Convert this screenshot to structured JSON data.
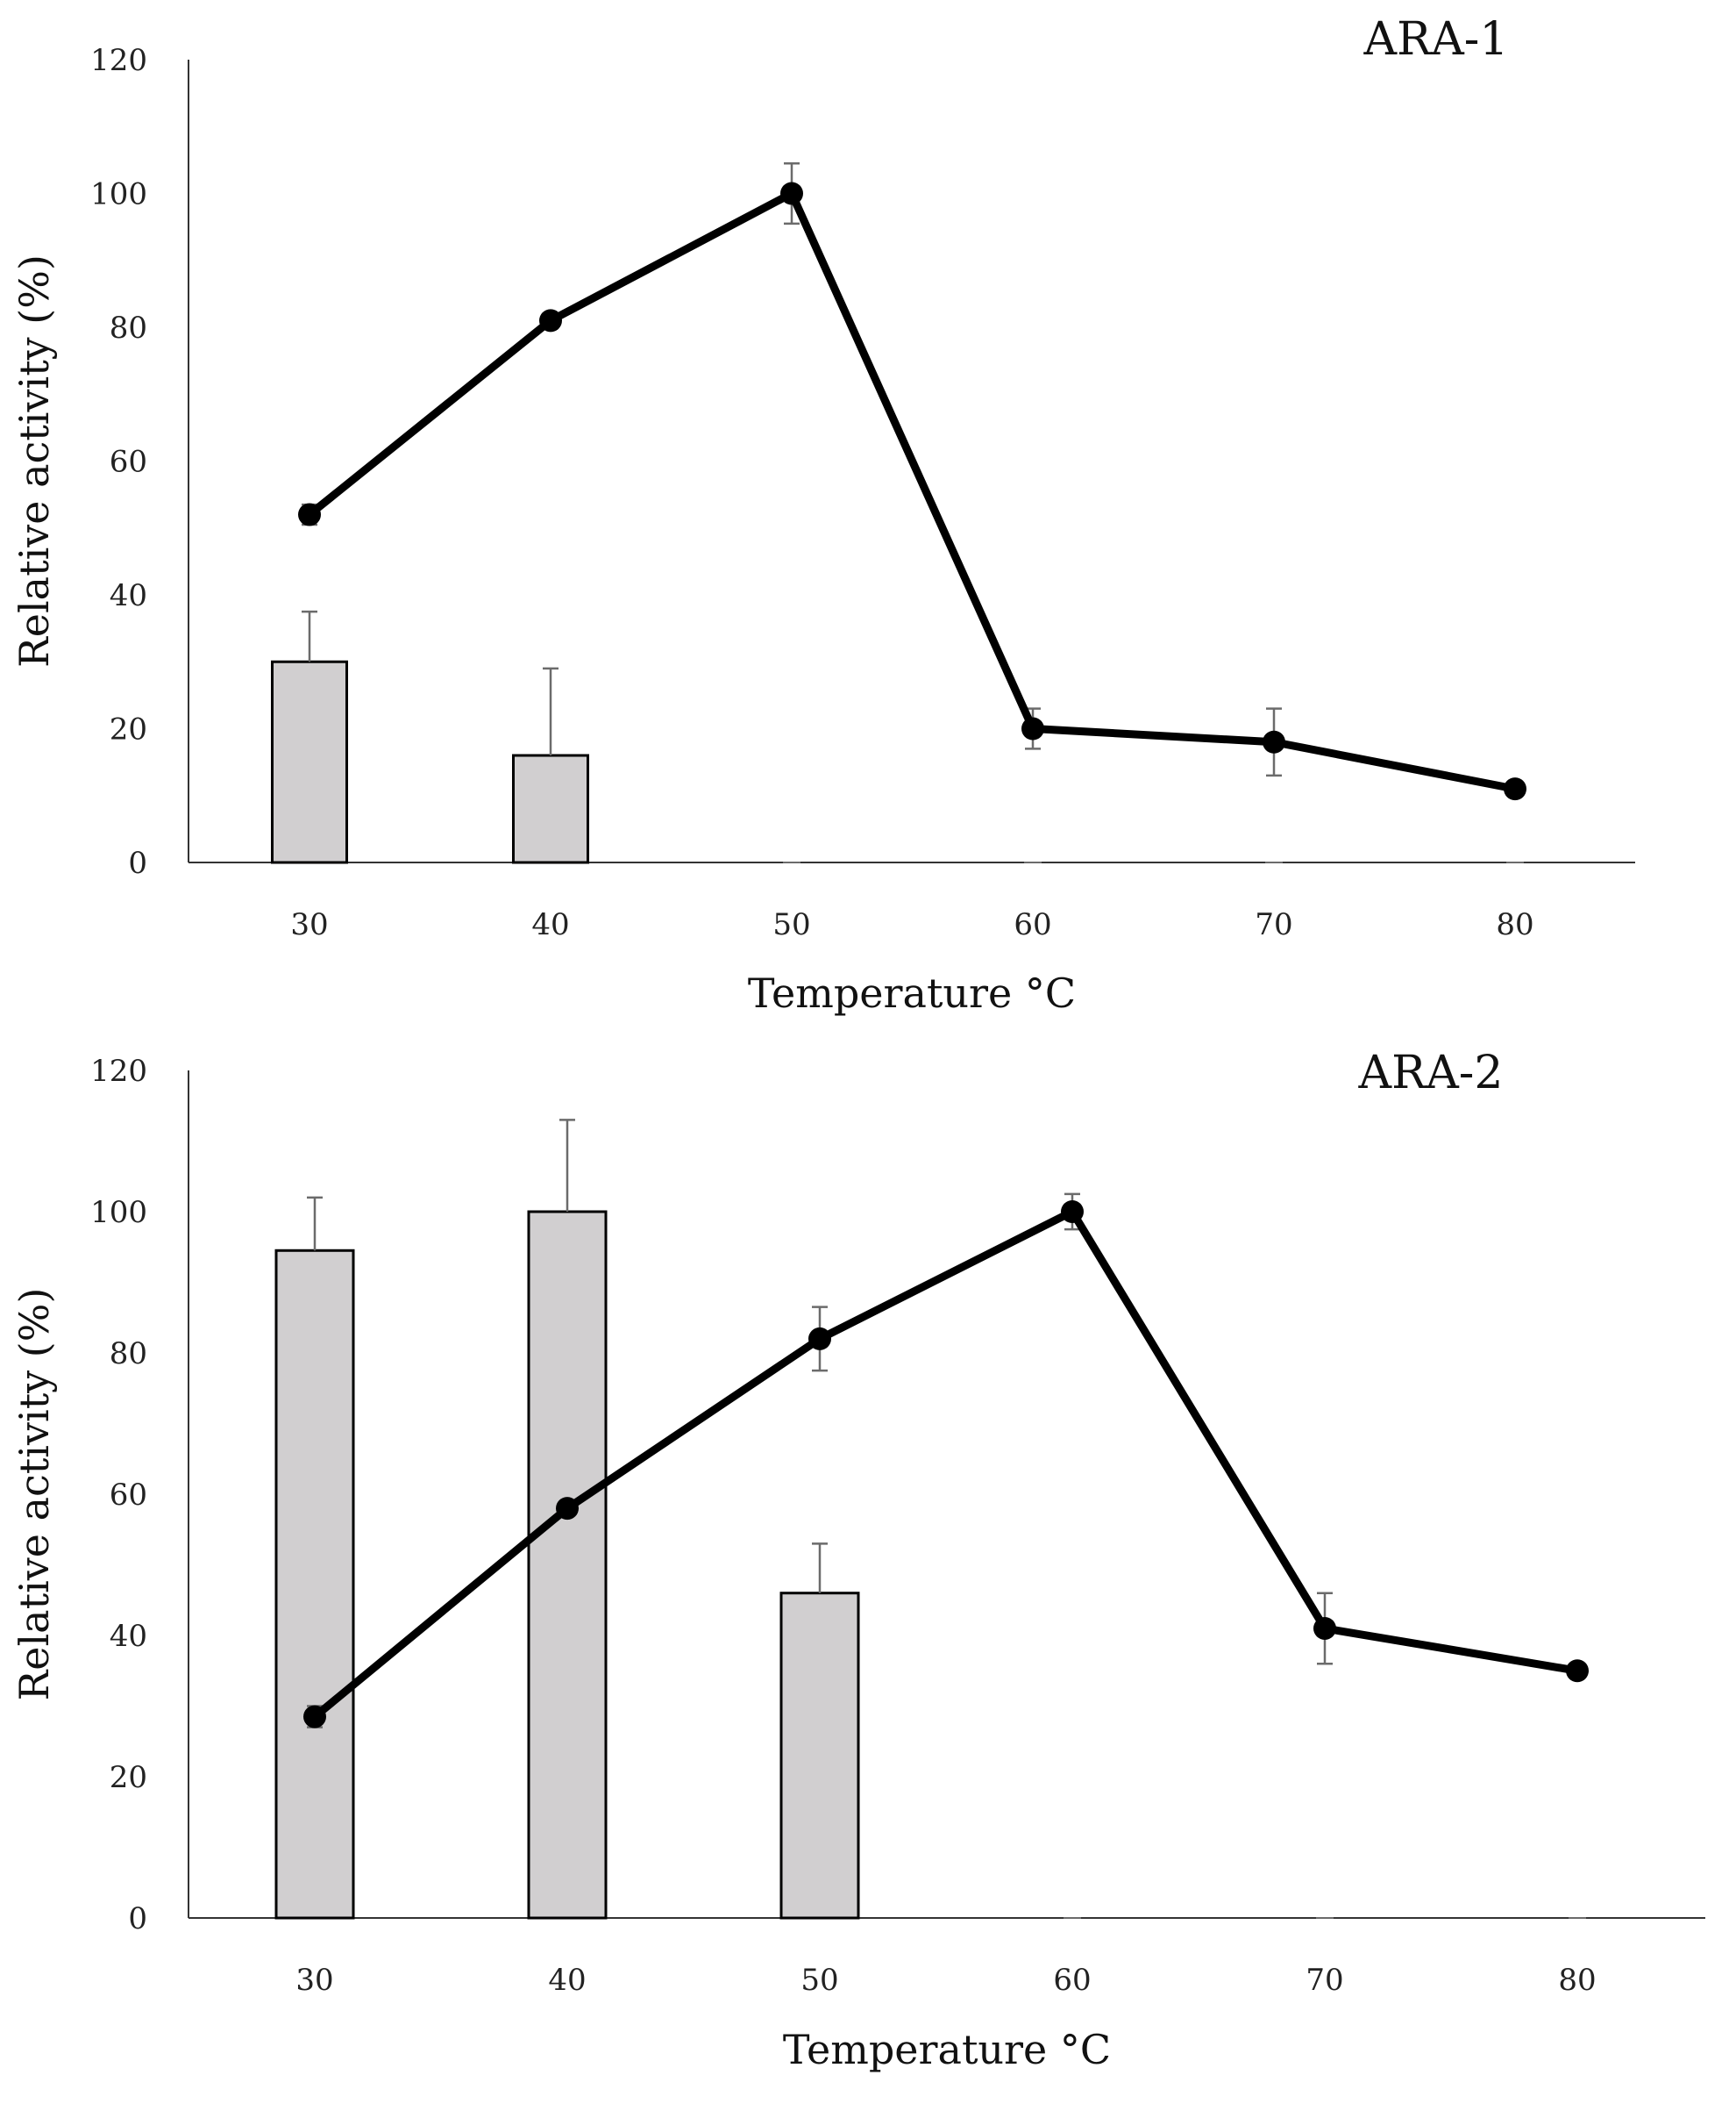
{
  "colors": {
    "bar_fill": "#d1cfd0",
    "bar_stroke": "#000000",
    "line": "#000000",
    "error_bar": "#6b6b6b",
    "axis": "#333333"
  },
  "chart_data": [
    {
      "type": "bar+line",
      "title": "ARA-1",
      "xlabel": "Temperature °C",
      "ylabel": "Relative activity (%)",
      "ylim": [
        0,
        120
      ],
      "yticks": [
        "0",
        "20",
        "40",
        "60",
        "80",
        "100",
        "120"
      ],
      "categories": [
        "30",
        "40",
        "50",
        "60",
        "70",
        "80"
      ],
      "series": [
        {
          "name": "bars",
          "type": "bar",
          "values": [
            30,
            16,
            0,
            0,
            0,
            0
          ],
          "errors": [
            7.5,
            13,
            0,
            0,
            0,
            0
          ]
        },
        {
          "name": "line",
          "type": "line",
          "values": [
            52,
            81,
            100,
            20,
            18,
            11
          ],
          "errors": [
            1.5,
            1,
            4.5,
            3,
            5,
            0
          ]
        }
      ]
    },
    {
      "type": "bar+line",
      "title": "ARA-2",
      "xlabel": "Temperature °C",
      "ylabel": "Relative activity (%)",
      "ylim": [
        0,
        120
      ],
      "yticks": [
        "0",
        "20",
        "40",
        "60",
        "80",
        "100",
        "120"
      ],
      "categories": [
        "30",
        "40",
        "50",
        "60",
        "70",
        "80"
      ],
      "series": [
        {
          "name": "bars",
          "type": "bar",
          "values": [
            94.5,
            100,
            46,
            0,
            0,
            0
          ],
          "errors": [
            7.5,
            13,
            7,
            0,
            0,
            0
          ]
        },
        {
          "name": "line",
          "type": "line",
          "values": [
            28.5,
            58,
            82,
            100,
            41,
            35
          ],
          "errors": [
            1.5,
            0.5,
            4.5,
            2.5,
            5,
            0
          ]
        }
      ]
    }
  ]
}
